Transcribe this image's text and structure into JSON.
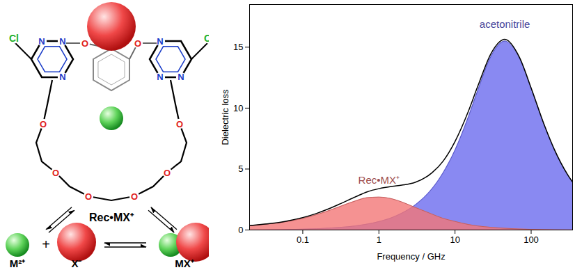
{
  "chart_data": {
    "type": "area",
    "x_label": "Frequency / GHz",
    "y_label": "Dielectric loss",
    "log": "x",
    "xlim": [
      0.02,
      350
    ],
    "xticks": [
      0.1,
      1,
      10,
      100
    ],
    "ylim": [
      0,
      18.5
    ],
    "yticks": [
      0,
      5,
      10,
      15
    ],
    "x": [
      0.02,
      0.03,
      0.05,
      0.07,
      0.1,
      0.15,
      0.2,
      0.3,
      0.5,
      0.7,
      1,
      1.5,
      2,
      3,
      5,
      7,
      10,
      15,
      20,
      30,
      45,
      70,
      100,
      150,
      200,
      300,
      350
    ],
    "series": [
      {
        "name": "acetonitrile",
        "type": "area",
        "color": "#6b6bef",
        "values": [
          0.01,
          0.02,
          0.03,
          0.05,
          0.07,
          0.1,
          0.14,
          0.21,
          0.34,
          0.48,
          0.69,
          1.03,
          1.38,
          2.06,
          3.4,
          4.71,
          6.56,
          9.3,
          11.5,
          14.31,
          15.5,
          14.1,
          11.6,
          8.53,
          6.64,
          4.55,
          3.92
        ]
      },
      {
        "name": "Rec•MX⁺",
        "type": "area",
        "color": "#f27777",
        "values": [
          0.35,
          0.45,
          0.6,
          0.75,
          0.95,
          1.25,
          1.5,
          1.9,
          2.4,
          2.65,
          2.7,
          2.55,
          2.3,
          1.85,
          1.3,
          0.95,
          0.7,
          0.45,
          0.33,
          0.22,
          0.14,
          0.08,
          0.05,
          0.03,
          0.02,
          0.01,
          0.01
        ]
      },
      {
        "type": "line",
        "color": "#000000",
        "values": [
          0.36,
          0.47,
          0.63,
          0.8,
          1.02,
          1.35,
          1.64,
          2.11,
          2.74,
          3.13,
          3.39,
          3.58,
          3.68,
          3.91,
          4.7,
          5.66,
          7.26,
          9.75,
          11.83,
          14.53,
          15.64,
          14.18,
          11.65,
          8.56,
          6.66,
          4.56,
          3.93
        ]
      }
    ]
  },
  "diagram": {
    "atoms": {
      "chlorine": "Cl",
      "nitrogen": "N",
      "oxygen": "O"
    },
    "complex": "Rec•MX⁺",
    "cation": "M²⁺",
    "anion": "X⁻",
    "plus": "+",
    "ion_pair": "MX⁺"
  }
}
